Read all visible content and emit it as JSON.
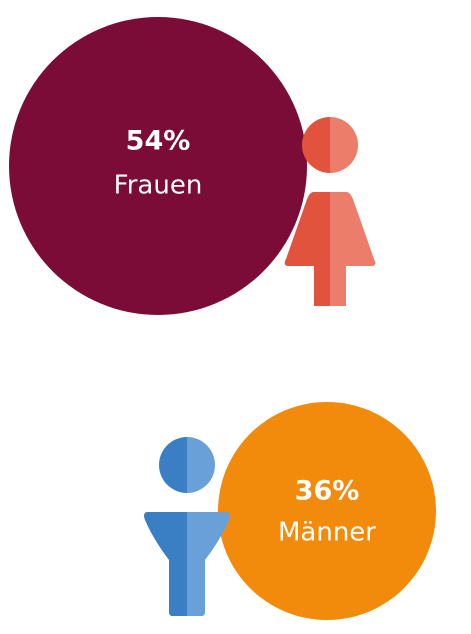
{
  "items": [
    {
      "percent": "54%",
      "label": "Frauen"
    },
    {
      "percent": "36%",
      "label": "Männer"
    }
  ]
}
